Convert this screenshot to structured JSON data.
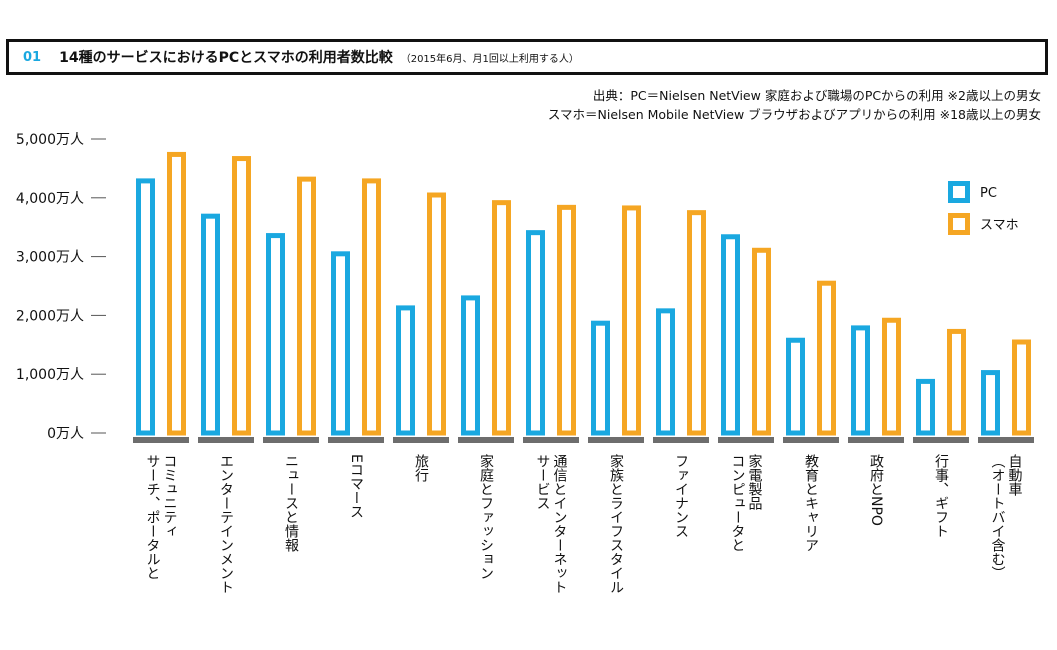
{
  "header": {
    "number": "01",
    "title": "14種のサービスにおけるPCとスマホの利用者数比較",
    "subtitle": "（2015年6月、月1回以上利用する人）"
  },
  "source": {
    "line1": "出典：PC＝Nielsen NetView 家庭および職場のPCからの利用 ※2歳以上の男女",
    "line2": "スマホ＝Nielsen Mobile NetView ブラウザおよびアプリからの利用 ※18歳以上の男女"
  },
  "colors": {
    "pc": "#1aa8e0",
    "smartphone": "#f5a623",
    "base_bar": "#6d6d6d",
    "title_number": "#1aa8e0"
  },
  "chart_data": {
    "type": "bar",
    "ylim": [
      0,
      5000
    ],
    "yticks": [
      0,
      1000,
      2000,
      3000,
      4000,
      5000
    ],
    "ytick_labels": [
      "0万人",
      "1,000万人",
      "2,000万人",
      "3,000万人",
      "4,000万人",
      "5,000万人"
    ],
    "legend_position": "top-right",
    "grid": false,
    "categories": [
      "コミュニティサーチ、ポータルと",
      "エンターテインメント",
      "ニュースと情報",
      "Eコマース",
      "旅行",
      "家庭とファッション",
      "通信とインターネットサービス",
      "家族とライフスタイル",
      "ファイナンス",
      "家電製品コンピュータと",
      "教育とキャリア",
      "政府とNPO",
      "行事、ギフト",
      "自動車（オートバイ含む）"
    ],
    "category_lines": [
      [
        "コミュニティ",
        "サーチ、ポータルと"
      ],
      [
        "エンターテインメント"
      ],
      [
        "ニュースと情報"
      ],
      [
        "Eコマース"
      ],
      [
        "旅行"
      ],
      [
        "家庭とファッション"
      ],
      [
        "通信とインターネット",
        "サービス"
      ],
      [
        "家族とライフスタイル"
      ],
      [
        "ファイナンス"
      ],
      [
        "家電製品",
        "コンピュータと"
      ],
      [
        "教育とキャリア"
      ],
      [
        "政府とNPO"
      ],
      [
        "行事、ギフト"
      ],
      [
        "自動車",
        "（オートバイ含む）"
      ]
    ],
    "series": [
      {
        "name": "PC",
        "values": [
          4330,
          3730,
          3400,
          3090,
          2170,
          2340,
          3450,
          1910,
          2120,
          3380,
          1620,
          1830,
          920,
          1070
        ]
      },
      {
        "name": "スマホ",
        "values": [
          4780,
          4710,
          4360,
          4330,
          4090,
          3960,
          3880,
          3870,
          3790,
          3150,
          2590,
          1960,
          1770,
          1590
        ]
      }
    ]
  }
}
